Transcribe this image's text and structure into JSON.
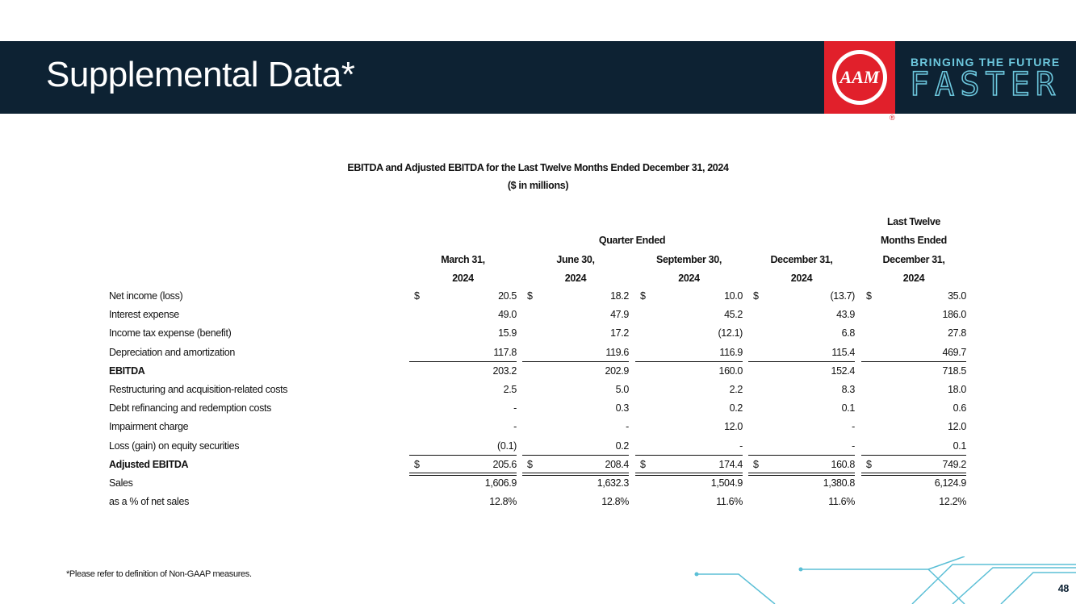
{
  "header": {
    "title": "Supplemental Data*",
    "logo": "AAM",
    "tagline_top": "BRINGING THE FUTURE",
    "tagline_bottom": "FASTER"
  },
  "table": {
    "title": "EBITDA and Adjusted EBITDA for the Last Twelve Months Ended December 31, 2024",
    "subtitle": "($ in millions)",
    "group_header": "Quarter Ended",
    "currency_symbol": "$",
    "columns": [
      [
        "March 31,",
        "2024"
      ],
      [
        "June 30,",
        "2024"
      ],
      [
        "September 30,",
        "2024"
      ],
      [
        "December 31,",
        "2024"
      ],
      [
        "Last Twelve",
        "Months Ended",
        "December 31,",
        "2024"
      ]
    ],
    "rows": [
      {
        "label": "Net income (loss)",
        "bold": false,
        "currency": true,
        "values": [
          "20.5",
          "18.2",
          "10.0",
          "(13.7)",
          "35.0"
        ]
      },
      {
        "label": "Interest expense",
        "bold": false,
        "currency": false,
        "values": [
          "49.0",
          "47.9",
          "45.2",
          "43.9",
          "186.0"
        ]
      },
      {
        "label": "Income tax expense (benefit)",
        "bold": false,
        "currency": false,
        "values": [
          "15.9",
          "17.2",
          "(12.1)",
          "6.8",
          "27.8"
        ]
      },
      {
        "label": "Depreciation and amortization",
        "bold": false,
        "currency": false,
        "values": [
          "117.8",
          "119.6",
          "116.9",
          "115.4",
          "469.7"
        ]
      },
      {
        "label": "EBITDA",
        "bold": true,
        "currency": false,
        "values": [
          "203.2",
          "202.9",
          "160.0",
          "152.4",
          "718.5"
        ]
      },
      {
        "label": "Restructuring and acquisition-related costs",
        "bold": false,
        "currency": false,
        "values": [
          "2.5",
          "5.0",
          "2.2",
          "8.3",
          "18.0"
        ]
      },
      {
        "label": "Debt refinancing and redemption costs",
        "bold": false,
        "currency": false,
        "values": [
          "-",
          "0.3",
          "0.2",
          "0.1",
          "0.6"
        ]
      },
      {
        "label": "Impairment charge",
        "bold": false,
        "currency": false,
        "values": [
          "-",
          "-",
          "12.0",
          "-",
          "12.0"
        ]
      },
      {
        "label": "Loss (gain) on equity securities",
        "bold": false,
        "currency": false,
        "values": [
          "(0.1)",
          "0.2",
          "-",
          "-",
          "0.1"
        ]
      },
      {
        "label": "Adjusted EBITDA",
        "bold": true,
        "currency": true,
        "values": [
          "205.6",
          "208.4",
          "174.4",
          "160.8",
          "749.2"
        ]
      },
      {
        "label": "Sales",
        "bold": false,
        "currency": false,
        "values": [
          "1,606.9",
          "1,632.3",
          "1,504.9",
          "1,380.8",
          "6,124.9"
        ]
      },
      {
        "label": "as a % of net sales",
        "bold": false,
        "currency": false,
        "values": [
          "12.8%",
          "12.8%",
          "11.6%",
          "11.6%",
          "12.2%"
        ]
      }
    ]
  },
  "footnote": "*Please refer to definition of Non-GAAP measures.",
  "page_number": "48"
}
